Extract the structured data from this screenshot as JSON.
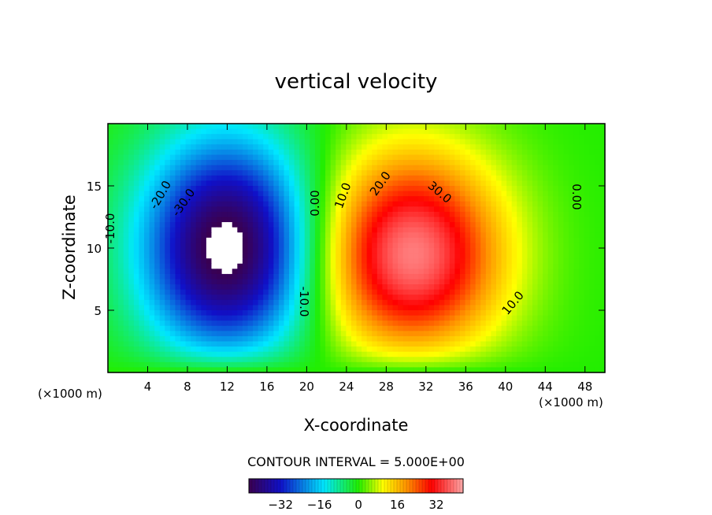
{
  "chart_data": {
    "type": "heatmap",
    "title": "vertical velocity",
    "xlabel": "X-coordinate",
    "ylabel": "Z-coordinate",
    "x_unit_left": "(×1000 m)",
    "x_unit_right": "(×1000 m)",
    "xlim": [
      0,
      50
    ],
    "ylim": [
      0,
      20
    ],
    "x_ticks": [
      4,
      8,
      12,
      16,
      20,
      24,
      28,
      32,
      36,
      40,
      44,
      48
    ],
    "y_ticks": [
      5,
      10,
      15
    ],
    "contour_interval_text": "CONTOUR INTERVAL = 5.000E+00",
    "contour_labels": [
      "-10.0",
      "-20.0",
      "-30.0",
      "0.00",
      "-10.0",
      "10.0",
      "20.0",
      "30.0",
      "10.0",
      "0.00"
    ],
    "colorbar": {
      "min": -45,
      "max": 43,
      "ticks": [
        -32,
        -16,
        0,
        16,
        32
      ]
    },
    "cells": [
      {
        "name": "downdraft",
        "x": 12,
        "z": 10,
        "sx": 6.0,
        "sz": 6.2,
        "amp": -48
      },
      {
        "name": "updraft",
        "x": 30.5,
        "z": 9.5,
        "sx": 6.5,
        "sz": 5.8,
        "amp": 40
      }
    ],
    "colors": {
      "min_violet": "#3a0050",
      "blue": "#1010c8",
      "cyan": "#00e8ff",
      "green": "#22ee00",
      "yellow": "#ffff00",
      "orange": "#ff9000",
      "red": "#ff0000",
      "max_pink": "#ffa8a8"
    }
  }
}
